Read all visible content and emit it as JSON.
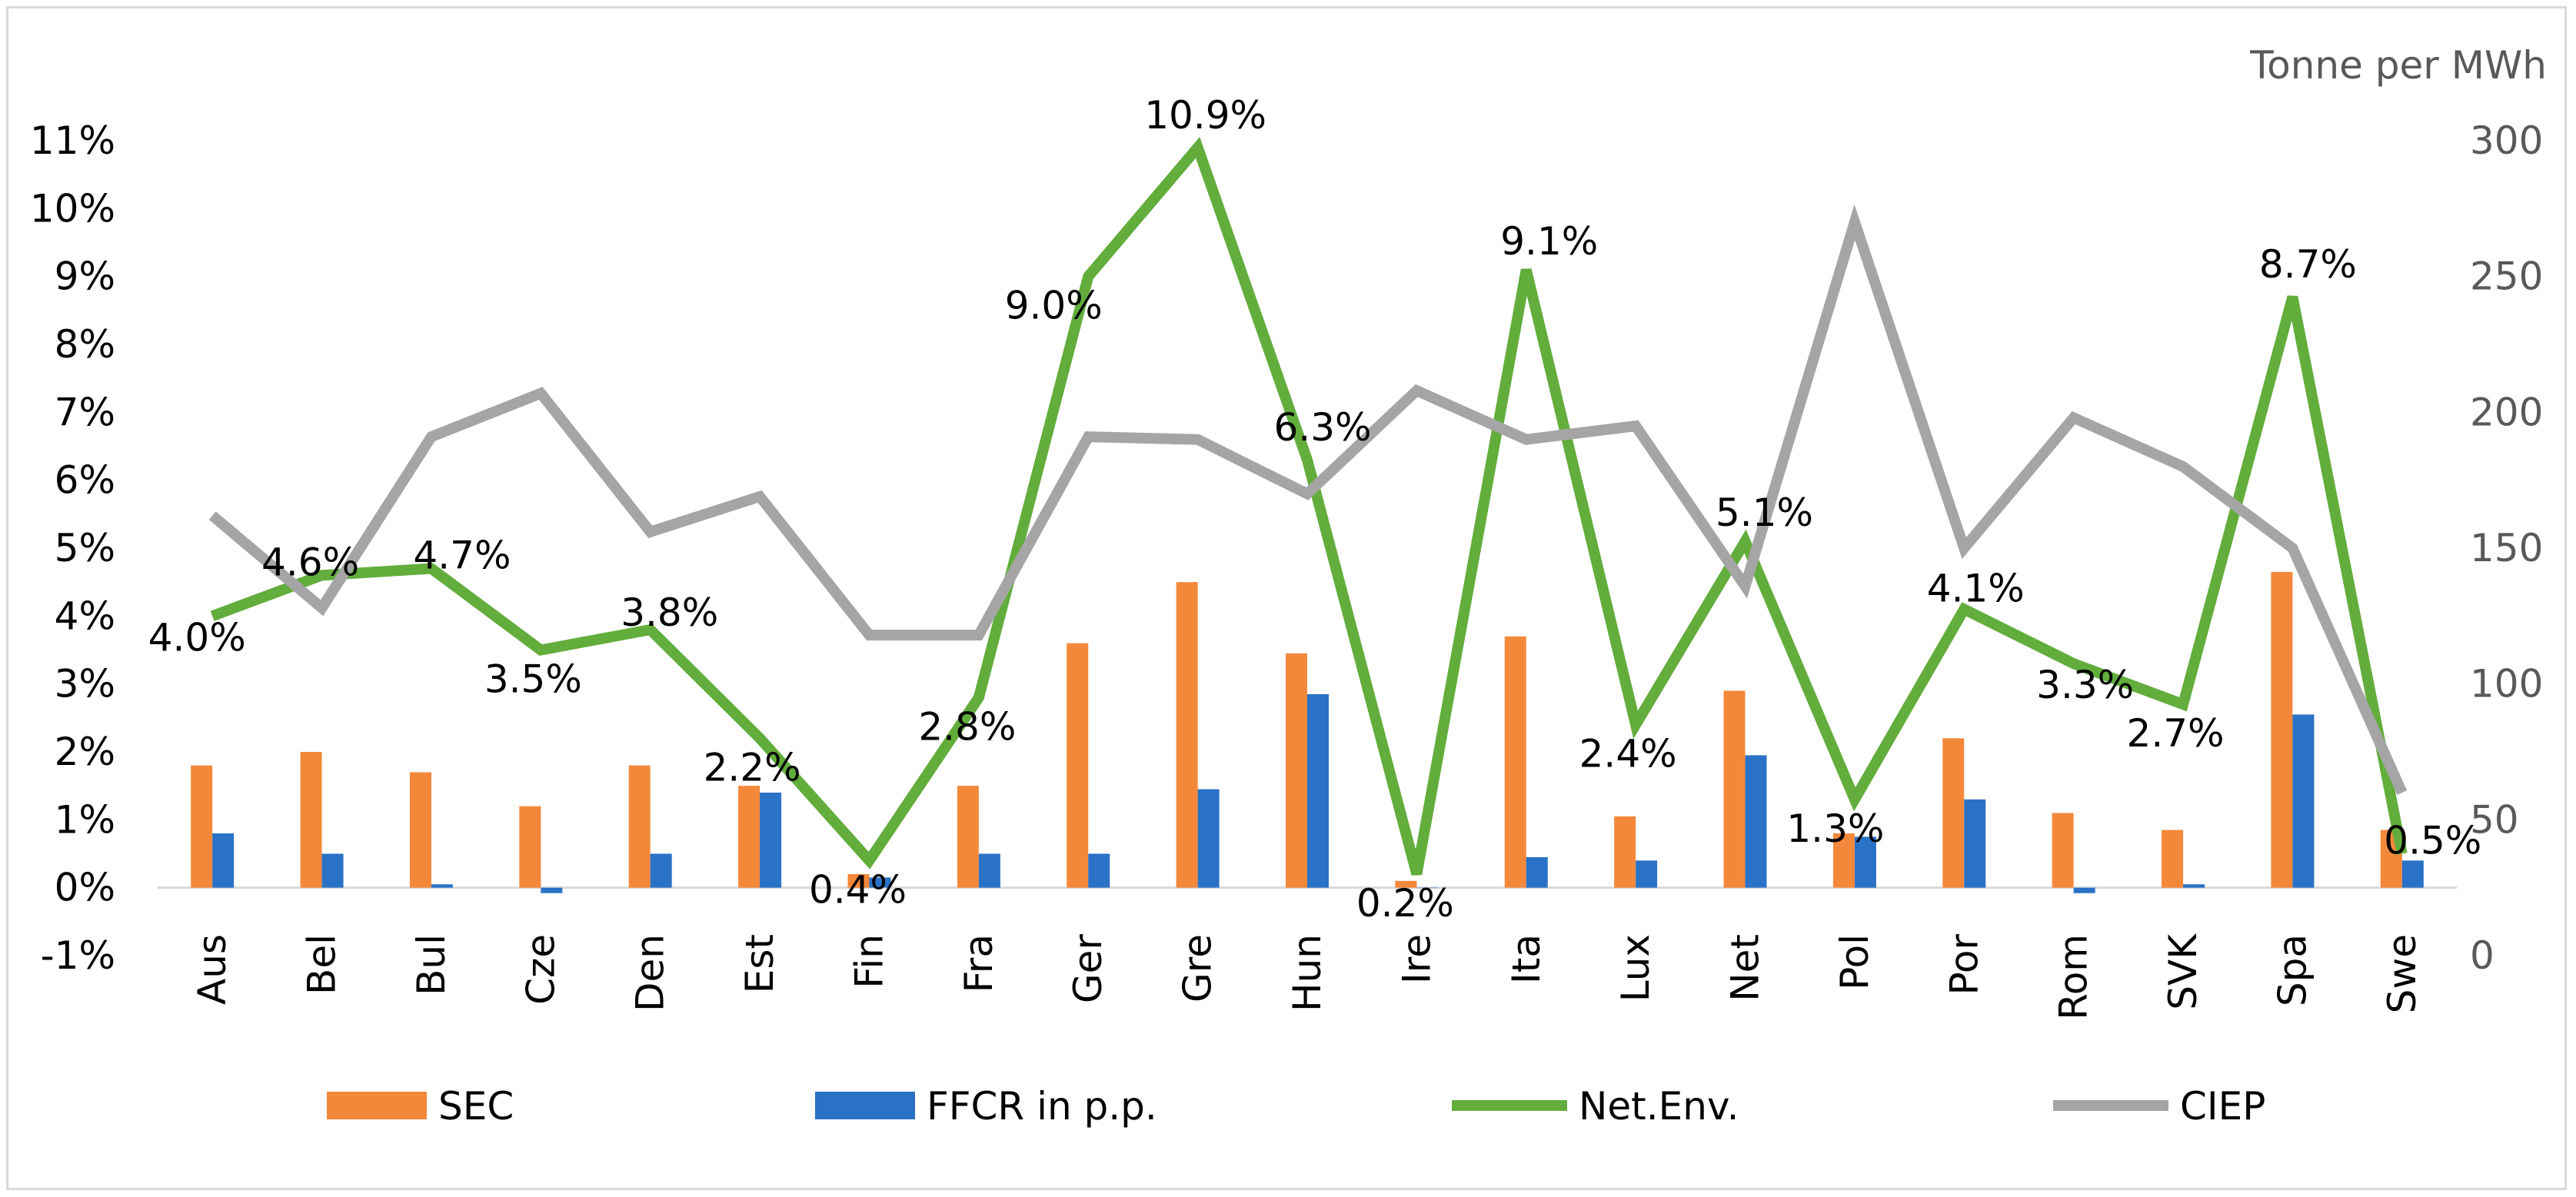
{
  "chart_data": {
    "type": "bar",
    "categories": [
      "Aus",
      "Bel",
      "Bul",
      "Cze",
      "Den",
      "Est",
      "Fin",
      "Fra",
      "Ger",
      "Gre",
      "Hun",
      "Ire",
      "Ita",
      "Lux",
      "Net",
      "Pol",
      "Por",
      "Rom",
      "SVK",
      "Spa",
      "Swe"
    ],
    "series": [
      {
        "name": "SEC",
        "type": "bar",
        "axis": "left",
        "color": "#f4883a",
        "values": [
          1.8,
          2.0,
          1.7,
          1.2,
          1.8,
          1.5,
          0.2,
          1.5,
          3.6,
          4.5,
          3.45,
          0.1,
          3.7,
          1.05,
          2.9,
          0.8,
          2.2,
          1.1,
          0.85,
          4.65,
          0.85
        ]
      },
      {
        "name": "FFCR in p.p.",
        "type": "bar",
        "axis": "left",
        "color": "#2a72c6",
        "values": [
          0.8,
          0.5,
          0.05,
          -0.08,
          0.5,
          1.4,
          0.15,
          0.5,
          0.5,
          1.45,
          2.85,
          0.0,
          0.45,
          0.4,
          1.95,
          0.75,
          1.3,
          -0.08,
          0.05,
          2.55,
          0.4
        ]
      },
      {
        "name": "Net.Env.",
        "type": "line",
        "axis": "left",
        "color": "#62ad3c",
        "values": [
          4.0,
          4.6,
          4.7,
          3.5,
          3.8,
          2.2,
          0.4,
          2.8,
          9.0,
          10.9,
          6.3,
          0.2,
          9.1,
          2.4,
          5.1,
          1.3,
          4.1,
          3.3,
          2.7,
          8.7,
          0.5
        ],
        "labels": [
          "4.0%",
          "4.6%",
          "4.7%",
          "3.5%",
          "3.8%",
          "2.2%",
          "0.4%",
          "2.8%",
          "9.0%",
          "10.9%",
          "6.3%",
          "0.2%",
          "9.1%",
          "2.4%",
          "5.1%",
          "1.3%",
          "4.1%",
          "3.3%",
          "2.7%",
          "8.7%",
          "0.5%"
        ]
      },
      {
        "name": "CIEP",
        "type": "line",
        "axis": "right",
        "color": "#a5a5a5",
        "values": [
          162,
          128,
          191,
          207,
          156,
          169,
          118,
          118,
          191,
          190,
          170,
          208,
          190,
          195,
          136,
          270,
          150,
          198,
          180,
          150,
          60
        ]
      }
    ],
    "y_left": {
      "min": -1,
      "max": 11,
      "ticks": [
        "11%",
        "10%",
        "9%",
        "8%",
        "7%",
        "6%",
        "5%",
        "4%",
        "3%",
        "2%",
        "1%",
        "0%",
        "-1%"
      ]
    },
    "y_right": {
      "min": 0,
      "max": 300,
      "ticks": [
        "300",
        "250",
        "200",
        "150",
        "100",
        "50",
        "0"
      ],
      "label": "Tonne per MWh"
    },
    "grid": false,
    "legend_position": "bottom"
  }
}
